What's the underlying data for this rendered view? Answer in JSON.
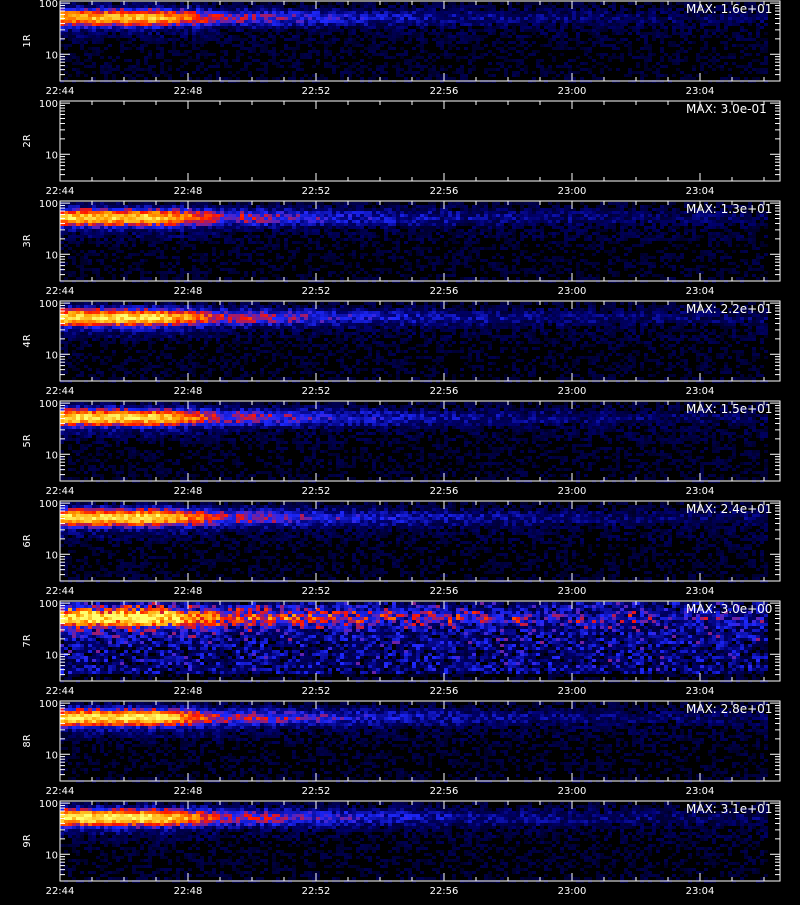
{
  "chart_data": {
    "type": "heatmap",
    "x_ticks": [
      "22:44",
      "22:48",
      "22:52",
      "22:56",
      "23:00",
      "23:04"
    ],
    "x_minutes": [
      0,
      4,
      8,
      12,
      16,
      20
    ],
    "x_range_minutes": [
      0,
      22.5
    ],
    "y_ticks": [
      "100",
      "10"
    ],
    "y_ticks_values": [
      100,
      10
    ],
    "y_scale": "log",
    "y_range": [
      3,
      110
    ],
    "colors": {
      "background": "#000000",
      "axis": "#ffffff",
      "colormap": [
        "#000000",
        "#000060",
        "#1020ff",
        "#ff1000",
        "#ffa000",
        "#ffff60"
      ]
    },
    "panels": [
      {
        "label": "1R",
        "max_label": "MAX: 1.6e+01",
        "max": 16,
        "intensity": 0.85,
        "noise": 0.15
      },
      {
        "label": "2R",
        "max_label": "MAX: 3.0e-01",
        "max": 0.3,
        "intensity": 0.0,
        "noise": 0.0
      },
      {
        "label": "3R",
        "max_label": "MAX: 1.3e+01",
        "max": 13,
        "intensity": 0.9,
        "noise": 0.15
      },
      {
        "label": "4R",
        "max_label": "MAX: 2.2e+01",
        "max": 22,
        "intensity": 0.95,
        "noise": 0.12
      },
      {
        "label": "5R",
        "max_label": "MAX: 1.5e+01",
        "max": 15,
        "intensity": 0.92,
        "noise": 0.18
      },
      {
        "label": "6R",
        "max_label": "MAX: 2.4e+01",
        "max": 24,
        "intensity": 0.95,
        "noise": 0.12
      },
      {
        "label": "7R",
        "max_label": "MAX: 3.0e+00",
        "max": 3,
        "intensity": 0.85,
        "noise": 0.45
      },
      {
        "label": "8R",
        "max_label": "MAX: 2.8e+01",
        "max": 28,
        "intensity": 0.95,
        "noise": 0.12
      },
      {
        "label": "9R",
        "max_label": "MAX: 3.1e+01",
        "max": 31,
        "intensity": 0.97,
        "noise": 0.12
      }
    ]
  }
}
